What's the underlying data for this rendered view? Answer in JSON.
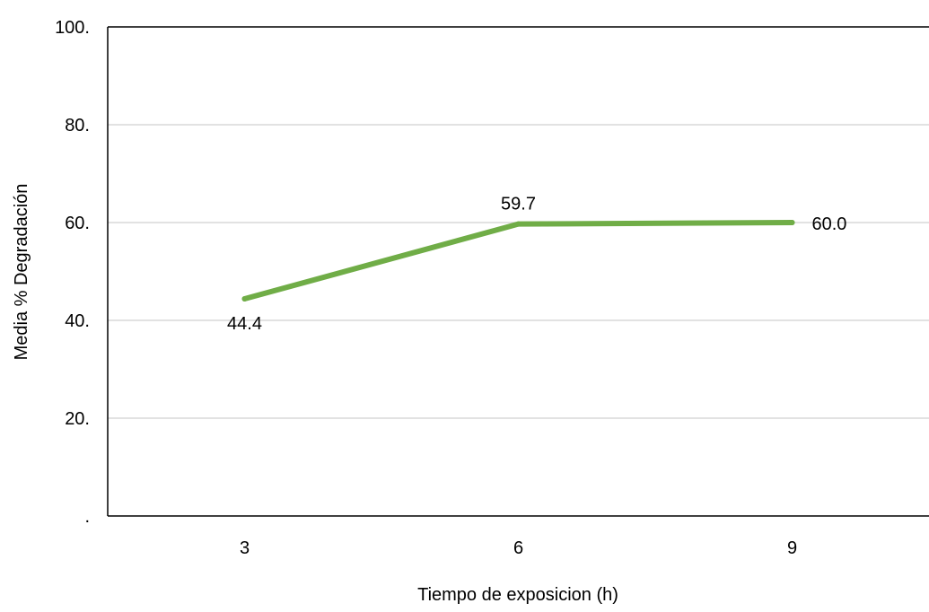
{
  "chart_data": {
    "type": "line",
    "title": "",
    "xlabel": "Tiempo de exposicion (h)",
    "ylabel": "Media % Degradación",
    "categories": [
      "3",
      "6",
      "9"
    ],
    "series": [
      {
        "values": [
          44.4,
          59.7,
          60.0
        ],
        "labels": [
          "44.4",
          "59.7",
          "60.0"
        ]
      }
    ],
    "ylim": [
      0,
      100
    ],
    "yticks": [
      0,
      20,
      40,
      60,
      80,
      100
    ],
    "ytick_labels": [
      ".",
      "20.",
      "40.",
      "60.",
      "80.",
      "100."
    ],
    "grid": true,
    "legend": "none",
    "line_color": "#70ad47",
    "grid_color": "#d9d9d9",
    "axis_color": "#000000"
  }
}
